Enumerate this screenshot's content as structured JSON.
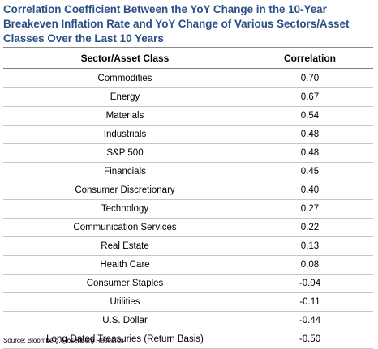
{
  "title": "Correlation Coefficient Between the YoY Change in the 10-Year Breakeven Inflation Rate and YoY Change of Various Sectors/Asset Classes Over the Last 10 Years",
  "table": {
    "headers": [
      "Sector/Asset Class",
      "Correlation"
    ],
    "rows": [
      {
        "name": "Commodities",
        "value": "0.70"
      },
      {
        "name": "Energy",
        "value": "0.67"
      },
      {
        "name": "Materials",
        "value": "0.54"
      },
      {
        "name": "Industrials",
        "value": "0.48"
      },
      {
        "name": "S&P 500",
        "value": "0.48"
      },
      {
        "name": "Financials",
        "value": "0.45"
      },
      {
        "name": "Consumer Discretionary",
        "value": "0.40"
      },
      {
        "name": "Technology",
        "value": "0.27"
      },
      {
        "name": "Communication Services",
        "value": "0.22"
      },
      {
        "name": "Real Estate",
        "value": "0.13"
      },
      {
        "name": "Health Care",
        "value": "0.08"
      },
      {
        "name": "Consumer Staples",
        "value": "-0.04"
      },
      {
        "name": "Utilities",
        "value": "-0.11"
      },
      {
        "name": "U.S. Dollar",
        "value": "-0.44"
      },
      {
        "name": "Long-Dated Treasuries (Return Basis)",
        "value": "-0.50"
      }
    ]
  },
  "source": "Source: Bloomberg, Rosenberg Research",
  "colors": {
    "title": "#2b4f86",
    "row_divider": "#c6c6c6",
    "header_divider": "#7f7f7f"
  }
}
